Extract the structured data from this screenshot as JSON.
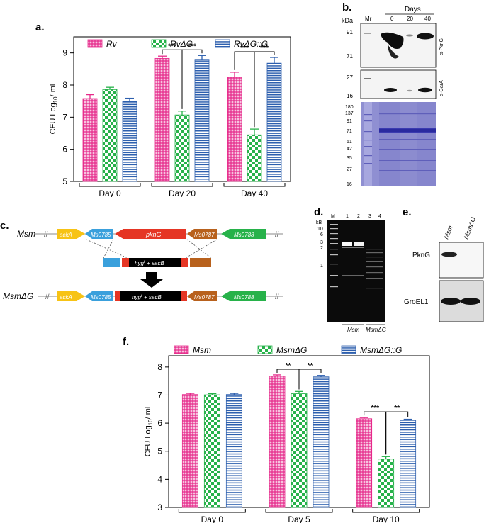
{
  "panels": {
    "a": {
      "letter": "a."
    },
    "b": {
      "letter": "b."
    },
    "c": {
      "letter": "c."
    },
    "d": {
      "letter": "d."
    },
    "e": {
      "letter": "e."
    },
    "f": {
      "letter": "f."
    }
  },
  "colors": {
    "pink": "#e6298a",
    "green": "#27b24a",
    "blue": "#2d5fae"
  },
  "chart_data": [
    {
      "id": "a",
      "type": "bar",
      "ylabel_main": "CFU Log",
      "ylabel_sub": "10",
      "ylabel_tail": "/ ml",
      "ylim": [
        5,
        9.5
      ],
      "yticks": [
        "5",
        "6",
        "7",
        "8",
        "9"
      ],
      "categories": [
        "Day 0",
        "Day 20",
        "Day 40"
      ],
      "series": [
        {
          "name": "Rv",
          "values": [
            7.58,
            8.83,
            8.25
          ],
          "errors": [
            0.12,
            0.07,
            0.15
          ],
          "pattern": "pink"
        },
        {
          "name": "RvΔG",
          "values": [
            7.86,
            7.07,
            6.45
          ],
          "errors": [
            0.07,
            0.12,
            0.18
          ],
          "pattern": "green"
        },
        {
          "name": "RvΔG::G",
          "values": [
            7.49,
            8.8,
            8.68
          ],
          "errors": [
            0.1,
            0.12,
            0.18
          ],
          "pattern": "blue"
        }
      ],
      "significance": [
        {
          "category": 1,
          "from": 0,
          "to": 1,
          "label": "***"
        },
        {
          "category": 1,
          "from": 1,
          "to": 2,
          "label": "***"
        },
        {
          "category": 2,
          "from": 0,
          "to": 1,
          "label": "***"
        },
        {
          "category": 2,
          "from": 1,
          "to": 2,
          "label": "***"
        }
      ]
    },
    {
      "id": "f",
      "type": "bar",
      "ylabel_main": "CFU Log",
      "ylabel_sub": "10",
      "ylabel_tail": "/ ml",
      "ylim": [
        3,
        8.4
      ],
      "yticks": [
        "3",
        "4",
        "5",
        "6",
        "7",
        "8"
      ],
      "categories": [
        "Day 0",
        "Day 5",
        "Day 10"
      ],
      "series": [
        {
          "name": "Msm",
          "values": [
            7.02,
            7.67,
            6.16
          ],
          "errors": [
            0.04,
            0.05,
            0.04
          ],
          "pattern": "pink"
        },
        {
          "name": "MsmΔG",
          "values": [
            7.01,
            7.05,
            4.72
          ],
          "errors": [
            0.04,
            0.08,
            0.09
          ],
          "pattern": "green"
        },
        {
          "name": "MsmΔG::G",
          "values": [
            7.02,
            7.65,
            6.1
          ],
          "errors": [
            0.04,
            0.05,
            0.04
          ],
          "pattern": "blue"
        }
      ],
      "significance": [
        {
          "category": 1,
          "from": 0,
          "to": 1,
          "label": "**"
        },
        {
          "category": 1,
          "from": 1,
          "to": 2,
          "label": "**"
        },
        {
          "category": 2,
          "from": 0,
          "to": 1,
          "label": "***"
        },
        {
          "category": 2,
          "from": 1,
          "to": 2,
          "label": "**"
        }
      ]
    }
  ],
  "western_b": {
    "unit": "kDa",
    "title": "Days",
    "lanes": [
      "Mr",
      "0",
      "20",
      "40"
    ],
    "pkng_markers": [
      "91",
      "71"
    ],
    "pkng_label": "α-PknG",
    "garA_markers": [
      "27",
      "16"
    ],
    "garA_label": "α-GarA",
    "gel_markers": [
      "180",
      "137",
      "91",
      "71",
      "51",
      "42",
      "35",
      "27",
      "16"
    ]
  },
  "genome_c": {
    "wt_label": "Msm",
    "wt_genes": [
      "ackA",
      "Ms0785",
      "pknG",
      "Ms0787",
      "Ms0788"
    ],
    "cassette": [
      "hyg",
      "r",
      " + sacB"
    ],
    "mut_label": "MsmΔG",
    "mut_genes": [
      "ackA",
      "Ms0785",
      "Ms0787",
      "Ms0788"
    ],
    "gene_colors": {
      "ackA": "#f7c315",
      "ms0785": "#3aa0dc",
      "pkng": "#e53524",
      "ms0787": "#b8611d",
      "ms0788": "#27b24a",
      "black": "#000000"
    }
  },
  "gel_d": {
    "unit": "kB",
    "markers": [
      "10",
      "6",
      "3",
      "2",
      "1"
    ],
    "lanes": [
      "M",
      "1",
      "2",
      "3",
      "4"
    ],
    "groups": [
      "Msm",
      "MsmΔG"
    ]
  },
  "western_e": {
    "lanes": [
      "Msm",
      "MsmΔG"
    ],
    "rows": [
      "PknG",
      "GroEL1"
    ]
  }
}
